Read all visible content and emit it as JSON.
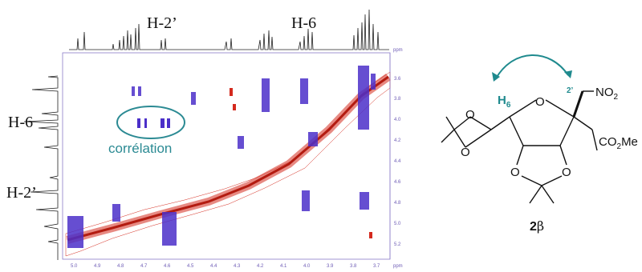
{
  "spectrum": {
    "top_label_h2p": "H-2’",
    "top_label_h6": "H-6",
    "left_label_h6": "H-6",
    "left_label_h2p": "H-2’",
    "correlation_label": "corrélation",
    "ppm_unit_right": "ppm",
    "ppm_unit_bottom": "ppm",
    "y_ticks": [
      "3.6",
      "3.8",
      "4.0",
      "4.2",
      "4.4",
      "4.6",
      "4.8",
      "5.0",
      "5.2"
    ],
    "x_ticks": [
      "5.0",
      "4.9",
      "4.8",
      "4.7",
      "4.6",
      "4.5",
      "4.4",
      "4.3",
      "4.2",
      "4.1",
      "4.0",
      "3.9",
      "3.8",
      "3.7"
    ],
    "colors": {
      "positive": "#d42a1e",
      "negative": "#4b2fc9",
      "axis": "#8a7cc8",
      "annotation": "#2b8a93"
    }
  },
  "molecule": {
    "h6_label": "H",
    "h6_sub": "6",
    "c2_label": "2’",
    "no2_label": "NO",
    "no2_sub": "2",
    "ring_o_label": "O",
    "ester_label": "CO",
    "ester_sub": "2",
    "ester_tail": "Me",
    "compound_number": "2",
    "compound_greek": "β"
  }
}
